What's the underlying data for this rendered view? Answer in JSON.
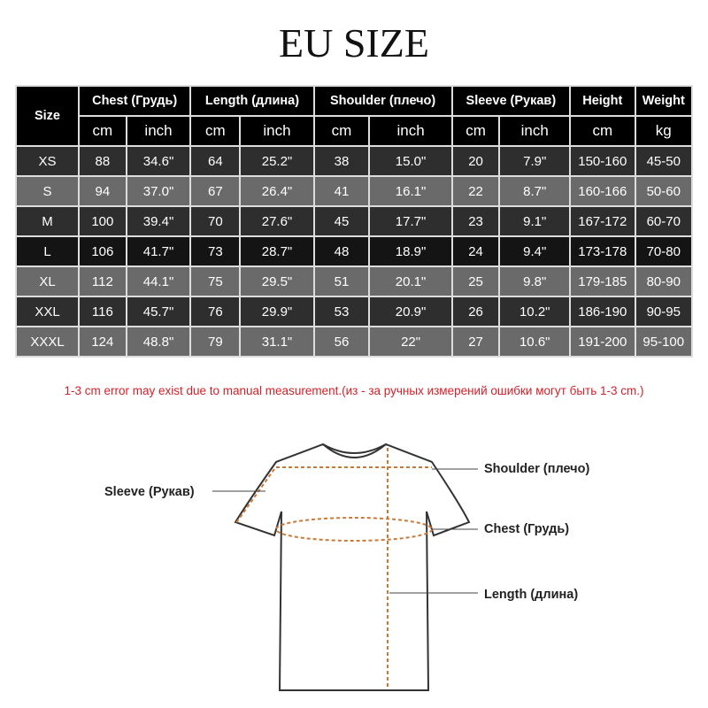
{
  "title": "EU SIZE",
  "table": {
    "size_header": "Size",
    "groups": [
      "Chest  (Грудь)",
      "Length (длина)",
      "Shoulder (плечо)",
      "Sleeve (Рукав)",
      "Height",
      "Weight"
    ],
    "units": [
      "cm",
      "inch",
      "cm",
      "inch",
      "cm",
      "inch",
      "cm",
      "inch",
      "cm",
      "kg"
    ],
    "rows": [
      [
        "XS",
        "88",
        "34.6\"",
        "64",
        "25.2\"",
        "38",
        "15.0\"",
        "20",
        "7.9\"",
        "150-160",
        "45-50"
      ],
      [
        "S",
        "94",
        "37.0\"",
        "67",
        "26.4\"",
        "41",
        "16.1\"",
        "22",
        "8.7\"",
        "160-166",
        "50-60"
      ],
      [
        "M",
        "100",
        "39.4\"",
        "70",
        "27.6\"",
        "45",
        "17.7\"",
        "23",
        "9.1\"",
        "167-172",
        "60-70"
      ],
      [
        "L",
        "106",
        "41.7\"",
        "73",
        "28.7\"",
        "48",
        "18.9\"",
        "24",
        "9.4\"",
        "173-178",
        "70-80"
      ],
      [
        "XL",
        "112",
        "44.1\"",
        "75",
        "29.5\"",
        "51",
        "20.1\"",
        "25",
        "9.8\"",
        "179-185",
        "80-90"
      ],
      [
        "XXL",
        "116",
        "45.7\"",
        "76",
        "29.9\"",
        "53",
        "20.9\"",
        "26",
        "10.2\"",
        "186-190",
        "90-95"
      ],
      [
        "XXXL",
        "124",
        "48.8\"",
        "79",
        "31.1\"",
        "56",
        "22\"",
        "27",
        "10.6\"",
        "191-200",
        "95-100"
      ]
    ]
  },
  "note": "1-3 cm error may exist due to manual measurement.(из - за ручных измерений ошибки могут быть 1-3 cm.)",
  "diagram": {
    "sleeve": "Sleeve (Рукав)",
    "shoulder": "Shoulder (плечо)",
    "chest": "Chest  (Грудь)",
    "length": "Length (длина)"
  },
  "colors": {
    "note": "#d0222a",
    "measure_line": "#c87a3a"
  }
}
